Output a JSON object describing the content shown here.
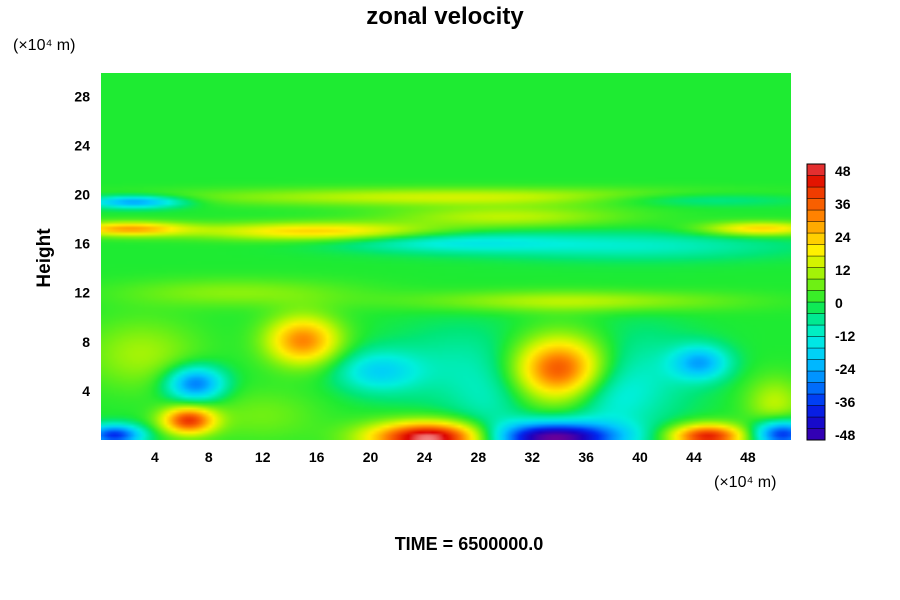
{
  "chart_data": {
    "type": "heatmap",
    "title": "zonal velocity",
    "ylabel": "Height",
    "x_unit_label": "(×10⁴ m)",
    "y_unit_label": "(×10⁴ m)",
    "x_ticks": [
      4,
      8,
      12,
      16,
      20,
      24,
      28,
      32,
      36,
      40,
      44,
      48
    ],
    "y_ticks": [
      4,
      8,
      12,
      16,
      20,
      24,
      28
    ],
    "xlim": [
      0,
      51.2
    ],
    "ylim": [
      0,
      29.9
    ],
    "colorbar": {
      "min": -48,
      "max": 48,
      "step": 4,
      "ticks": [
        48,
        36,
        24,
        12,
        0,
        -12,
        -24,
        -36,
        -48
      ]
    },
    "background_value": 0,
    "features": [
      {
        "x": 2.5,
        "y": 19.4,
        "value": -26,
        "sx": 2.5,
        "sy": 0.35
      },
      {
        "x": 44,
        "y": 19.6,
        "value": -10,
        "sx": 6,
        "sy": 0.4
      },
      {
        "x": 27,
        "y": 19.8,
        "value": 14,
        "sx": 14,
        "sy": 0.5
      },
      {
        "x": 2,
        "y": 17.2,
        "value": 26,
        "sx": 3,
        "sy": 0.4
      },
      {
        "x": 16,
        "y": 17,
        "value": 22,
        "sx": 6,
        "sy": 0.5
      },
      {
        "x": 49,
        "y": 17.2,
        "value": 22,
        "sx": 3,
        "sy": 0.4
      },
      {
        "x": 30,
        "y": 18.2,
        "value": 12,
        "sx": 6,
        "sy": 0.6
      },
      {
        "x": 26,
        "y": 16.1,
        "value": -12,
        "sx": 6,
        "sy": 0.6
      },
      {
        "x": 40,
        "y": 15.8,
        "value": -10,
        "sx": 8,
        "sy": 0.8
      },
      {
        "x": 35,
        "y": 11.3,
        "value": 12,
        "sx": 8,
        "sy": 0.6
      },
      {
        "x": 10,
        "y": 12,
        "value": 8,
        "sx": 6,
        "sy": 0.8
      },
      {
        "x": 15,
        "y": 8.1,
        "value": 30,
        "sx": 1.9,
        "sy": 1.4
      },
      {
        "x": 34,
        "y": 5.8,
        "value": 38,
        "sx": 2.4,
        "sy": 1.8
      },
      {
        "x": 7,
        "y": 4.6,
        "value": -30,
        "sx": 1.5,
        "sy": 1.0
      },
      {
        "x": 44.5,
        "y": 6.3,
        "value": -22,
        "sx": 1.5,
        "sy": 1.0
      },
      {
        "x": 20.5,
        "y": 5.6,
        "value": -16,
        "sx": 2.2,
        "sy": 1.2
      },
      {
        "x": 27,
        "y": 6,
        "value": -8,
        "sx": 4,
        "sy": 2.5
      },
      {
        "x": 40,
        "y": 5,
        "value": -9,
        "sx": 3,
        "sy": 3
      },
      {
        "x": 6.5,
        "y": 1.6,
        "value": 38,
        "sx": 1.4,
        "sy": 0.8
      },
      {
        "x": 24.5,
        "y": 0.2,
        "value": 52,
        "sx": 3.2,
        "sy": 0.9
      },
      {
        "x": 33.5,
        "y": 0.2,
        "value": -52,
        "sx": 3.5,
        "sy": 0.9
      },
      {
        "x": 45,
        "y": 0.3,
        "value": 42,
        "sx": 2,
        "sy": 0.7
      },
      {
        "x": 1,
        "y": 0.4,
        "value": -36,
        "sx": 1.5,
        "sy": 0.6
      },
      {
        "x": 50.5,
        "y": 0.5,
        "value": -38,
        "sx": 1.5,
        "sy": 0.8
      },
      {
        "x": 3,
        "y": 7,
        "value": 10,
        "sx": 3,
        "sy": 2
      },
      {
        "x": 50,
        "y": 3,
        "value": 12,
        "sx": 1.5,
        "sy": 1.5
      },
      {
        "x": 12,
        "y": 2,
        "value": 6,
        "sx": 3,
        "sy": 1.5
      },
      {
        "x": 29,
        "y": 3,
        "value": -6,
        "sx": 2,
        "sy": 2
      },
      {
        "x": 37.5,
        "y": 3.5,
        "value": -8,
        "sx": 2,
        "sy": 2
      }
    ],
    "grid": false
  },
  "footer": {
    "time_label": "TIME = 6500000.0"
  }
}
